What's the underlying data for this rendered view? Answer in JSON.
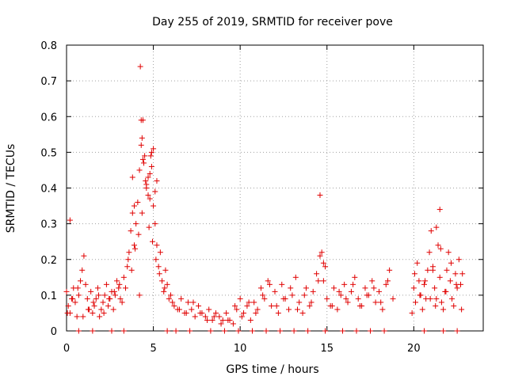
{
  "chart_data": {
    "type": "scatter",
    "title": "Day 255 of 2019, SRMTID for receiver pove",
    "xlabel": "GPS time / hours",
    "ylabel": "SRMTID / TECUs",
    "xlim": [
      0,
      24
    ],
    "ylim": [
      0,
      0.8
    ],
    "xticks": [
      "0",
      "5",
      "10",
      "15",
      "20"
    ],
    "yticks": [
      "0",
      "0.1",
      "0.2",
      "0.3",
      "0.4",
      "0.5",
      "0.6",
      "0.7",
      "0.8"
    ],
    "grid": true,
    "marker": "plus",
    "color": "#e00000",
    "series": [
      {
        "x": [
          0.0,
          0.1,
          0.2,
          0.3,
          0.4,
          0.5,
          0.6,
          0.7,
          0.8,
          0.9,
          1.0,
          1.1,
          1.2,
          1.3,
          1.4,
          1.5,
          1.6,
          1.7,
          1.8,
          1.9,
          2.0,
          2.1,
          2.2,
          2.3,
          2.4,
          2.5,
          2.6,
          2.7,
          2.8,
          2.9,
          3.0,
          3.1,
          3.2,
          3.3,
          3.4,
          3.5,
          3.6,
          3.7,
          3.8,
          3.9,
          4.0,
          4.1,
          4.2,
          4.3,
          4.4,
          4.5,
          4.6,
          4.7,
          4.8,
          4.9,
          5.0,
          5.1,
          5.2,
          5.3,
          5.4,
          5.5,
          5.6,
          5.7,
          5.8,
          5.9,
          6.0,
          6.2,
          6.4,
          6.6,
          6.8,
          7.0,
          7.2,
          7.4,
          7.6,
          7.8,
          8.0,
          8.2,
          8.4,
          8.6,
          8.8,
          9.0,
          9.2,
          9.4,
          9.6,
          9.8,
          10.0,
          10.2,
          10.4,
          10.6,
          10.8,
          11.0,
          11.2,
          11.4,
          11.6,
          11.8,
          12.0,
          12.2,
          12.4,
          12.6,
          12.8,
          13.0,
          13.2,
          13.4,
          13.6,
          13.8,
          14.0,
          14.2,
          14.4,
          14.6,
          14.8,
          15.0,
          15.2,
          15.4,
          15.6,
          15.8,
          16.0,
          16.2,
          16.4,
          16.6,
          16.8,
          17.0,
          17.2,
          17.4,
          17.6,
          17.8,
          18.0,
          18.2,
          18.4,
          18.6,
          18.8,
          19.9,
          20.0,
          20.1,
          20.2,
          20.3,
          20.4,
          20.5,
          20.6,
          20.7,
          20.8,
          20.9,
          21.0,
          21.1,
          21.2,
          21.3,
          21.4,
          21.5,
          21.6,
          21.7,
          21.8,
          21.9,
          22.0,
          22.1,
          22.2,
          22.3,
          22.4,
          22.5,
          22.6,
          22.7,
          22.8,
          0.05,
          0.35,
          0.65,
          0.95,
          1.25,
          1.55,
          1.85,
          2.15,
          2.45,
          2.75,
          3.05,
          3.55,
          3.75,
          3.95,
          4.15,
          4.35,
          4.55,
          4.75,
          4.95,
          5.15,
          5.35,
          5.65,
          6.1,
          6.5,
          6.9,
          7.3,
          7.7,
          8.1,
          8.5,
          8.9,
          9.3,
          9.7,
          10.1,
          10.5,
          10.9,
          11.3,
          11.7,
          12.1,
          12.5,
          12.9,
          13.3,
          13.7,
          14.1,
          14.5,
          14.9,
          15.3,
          15.7,
          16.1,
          16.5,
          16.9,
          17.3,
          17.7,
          18.1,
          18.5,
          20.05,
          20.35,
          20.65,
          20.95,
          21.25,
          21.55,
          21.85,
          22.15,
          22.45,
          22.75,
          4.2,
          4.25,
          4.3,
          4.35,
          4.4,
          4.45,
          4.6,
          4.7,
          4.8,
          4.85,
          4.9,
          5.0,
          5.1,
          5.2,
          3.8,
          3.9,
          14.6,
          14.7,
          14.8,
          21.1,
          21.3,
          21.5,
          0.2,
          0.7,
          1.5,
          2.6,
          3.3,
          5.8,
          6.3,
          7.1,
          8.3,
          9.1,
          9.9,
          10.7,
          11.5,
          12.3,
          13.1,
          13.9,
          14.9,
          15.9,
          16.7,
          17.5,
          18.3,
          20.6,
          21.7,
          22.5
        ],
        "y": [
          0.11,
          0.07,
          0.05,
          0.09,
          0.12,
          0.08,
          0.04,
          0.1,
          0.14,
          0.17,
          0.21,
          0.13,
          0.09,
          0.06,
          0.11,
          0.05,
          0.07,
          0.09,
          0.12,
          0.04,
          0.06,
          0.08,
          0.1,
          0.13,
          0.07,
          0.09,
          0.11,
          0.06,
          0.1,
          0.14,
          0.12,
          0.09,
          0.08,
          0.15,
          0.12,
          0.18,
          0.22,
          0.28,
          0.33,
          0.24,
          0.3,
          0.36,
          0.45,
          0.52,
          0.59,
          0.49,
          0.41,
          0.38,
          0.44,
          0.5,
          0.35,
          0.3,
          0.24,
          0.18,
          0.22,
          0.14,
          0.11,
          0.17,
          0.13,
          0.09,
          0.1,
          0.07,
          0.06,
          0.09,
          0.05,
          0.08,
          0.06,
          0.04,
          0.07,
          0.05,
          0.04,
          0.06,
          0.03,
          0.05,
          0.04,
          0.03,
          0.05,
          0.03,
          0.02,
          0.06,
          0.09,
          0.05,
          0.07,
          0.03,
          0.08,
          0.06,
          0.12,
          0.09,
          0.14,
          0.07,
          0.11,
          0.05,
          0.13,
          0.09,
          0.06,
          0.1,
          0.15,
          0.08,
          0.05,
          0.12,
          0.07,
          0.11,
          0.16,
          0.21,
          0.14,
          0.09,
          0.07,
          0.12,
          0.06,
          0.1,
          0.13,
          0.08,
          0.11,
          0.15,
          0.09,
          0.07,
          0.12,
          0.1,
          0.14,
          0.08,
          0.11,
          0.06,
          0.13,
          0.17,
          0.09,
          0.05,
          0.12,
          0.08,
          0.19,
          0.14,
          0.1,
          0.06,
          0.13,
          0.09,
          0.17,
          0.22,
          0.28,
          0.18,
          0.12,
          0.09,
          0.24,
          0.15,
          0.08,
          0.06,
          0.11,
          0.17,
          0.22,
          0.14,
          0.09,
          0.07,
          0.16,
          0.12,
          0.2,
          0.13,
          0.16,
          0.05,
          0.09,
          0.12,
          0.04,
          0.06,
          0.08,
          0.1,
          0.05,
          0.09,
          0.11,
          0.13,
          0.2,
          0.17,
          0.23,
          0.27,
          0.33,
          0.42,
          0.29,
          0.25,
          0.2,
          0.16,
          0.12,
          0.08,
          0.06,
          0.05,
          0.08,
          0.05,
          0.03,
          0.04,
          0.02,
          0.03,
          0.07,
          0.04,
          0.08,
          0.05,
          0.1,
          0.13,
          0.07,
          0.09,
          0.12,
          0.06,
          0.1,
          0.08,
          0.14,
          0.18,
          0.07,
          0.11,
          0.09,
          0.13,
          0.07,
          0.1,
          0.12,
          0.08,
          0.14,
          0.16,
          0.1,
          0.14,
          0.09,
          0.07,
          0.23,
          0.11,
          0.19,
          0.13,
          0.06,
          0.1,
          0.74,
          0.59,
          0.54,
          0.48,
          0.47,
          0.4,
          0.43,
          0.37,
          0.49,
          0.46,
          0.51,
          0.39,
          0.42,
          0.43,
          0.35,
          0.38,
          0.22,
          0.19,
          0.17,
          0.29,
          0.34,
          0.31,
          0.0,
          0.0,
          0.0,
          0.0,
          0.0,
          0.0,
          0.0,
          0.0,
          0.0,
          0.0,
          0.0,
          0.0,
          0.0,
          0.0,
          0.0,
          0.0,
          0.0,
          0.0,
          0.0,
          0.0,
          0.0,
          0.0,
          0.0
        ]
      }
    ]
  }
}
